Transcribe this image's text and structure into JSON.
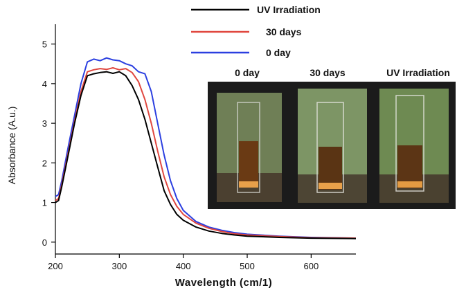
{
  "chart_data": {
    "type": "line",
    "title": "",
    "xlabel": "Wavelength (cm/1)",
    "ylabel": "Absorbance (A.u.)",
    "xlim": [
      200,
      670
    ],
    "ylim": [
      -0.3,
      5.5
    ],
    "xticks": [
      200,
      300,
      400,
      500,
      600
    ],
    "yticks": [
      0,
      1,
      2,
      3,
      4,
      5
    ],
    "grid": false,
    "legend_position": "top-right",
    "series": [
      {
        "name": "UV Irradiation",
        "color": "#000000",
        "x": [
          200,
          205,
          210,
          220,
          230,
          240,
          250,
          260,
          270,
          280,
          290,
          300,
          310,
          320,
          330,
          340,
          350,
          360,
          370,
          380,
          390,
          400,
          420,
          440,
          460,
          480,
          500,
          550,
          600,
          670
        ],
        "y": [
          1.0,
          1.05,
          1.4,
          2.2,
          3.0,
          3.7,
          4.2,
          4.25,
          4.28,
          4.3,
          4.26,
          4.3,
          4.2,
          3.95,
          3.6,
          3.1,
          2.5,
          1.9,
          1.3,
          0.95,
          0.7,
          0.55,
          0.38,
          0.28,
          0.22,
          0.18,
          0.15,
          0.12,
          0.1,
          0.09
        ]
      },
      {
        "name": "30 days",
        "color": "#e0473f",
        "x": [
          200,
          205,
          210,
          220,
          230,
          240,
          250,
          260,
          270,
          280,
          290,
          300,
          310,
          320,
          330,
          340,
          350,
          360,
          370,
          380,
          390,
          400,
          420,
          440,
          460,
          480,
          500,
          550,
          600,
          670
        ],
        "y": [
          1.05,
          1.1,
          1.45,
          2.25,
          3.05,
          3.8,
          4.3,
          4.35,
          4.38,
          4.36,
          4.4,
          4.35,
          4.38,
          4.28,
          4.05,
          3.6,
          3.0,
          2.3,
          1.65,
          1.2,
          0.9,
          0.7,
          0.48,
          0.35,
          0.27,
          0.21,
          0.18,
          0.14,
          0.11,
          0.1
        ]
      },
      {
        "name": "0 day",
        "color": "#2b3fe0",
        "x": [
          200,
          205,
          210,
          220,
          230,
          240,
          250,
          260,
          270,
          280,
          290,
          300,
          310,
          320,
          330,
          340,
          350,
          360,
          370,
          380,
          390,
          400,
          420,
          440,
          460,
          480,
          500,
          550,
          600,
          670
        ],
        "y": [
          1.15,
          1.2,
          1.55,
          2.4,
          3.2,
          4.0,
          4.55,
          4.62,
          4.58,
          4.65,
          4.6,
          4.58,
          4.5,
          4.45,
          4.3,
          4.25,
          3.8,
          3.0,
          2.2,
          1.55,
          1.1,
          0.8,
          0.52,
          0.38,
          0.3,
          0.24,
          0.2,
          0.15,
          0.12,
          0.1
        ]
      }
    ]
  },
  "inset": {
    "labels": [
      "0 day",
      "30 days",
      "UV Irradiation"
    ]
  }
}
